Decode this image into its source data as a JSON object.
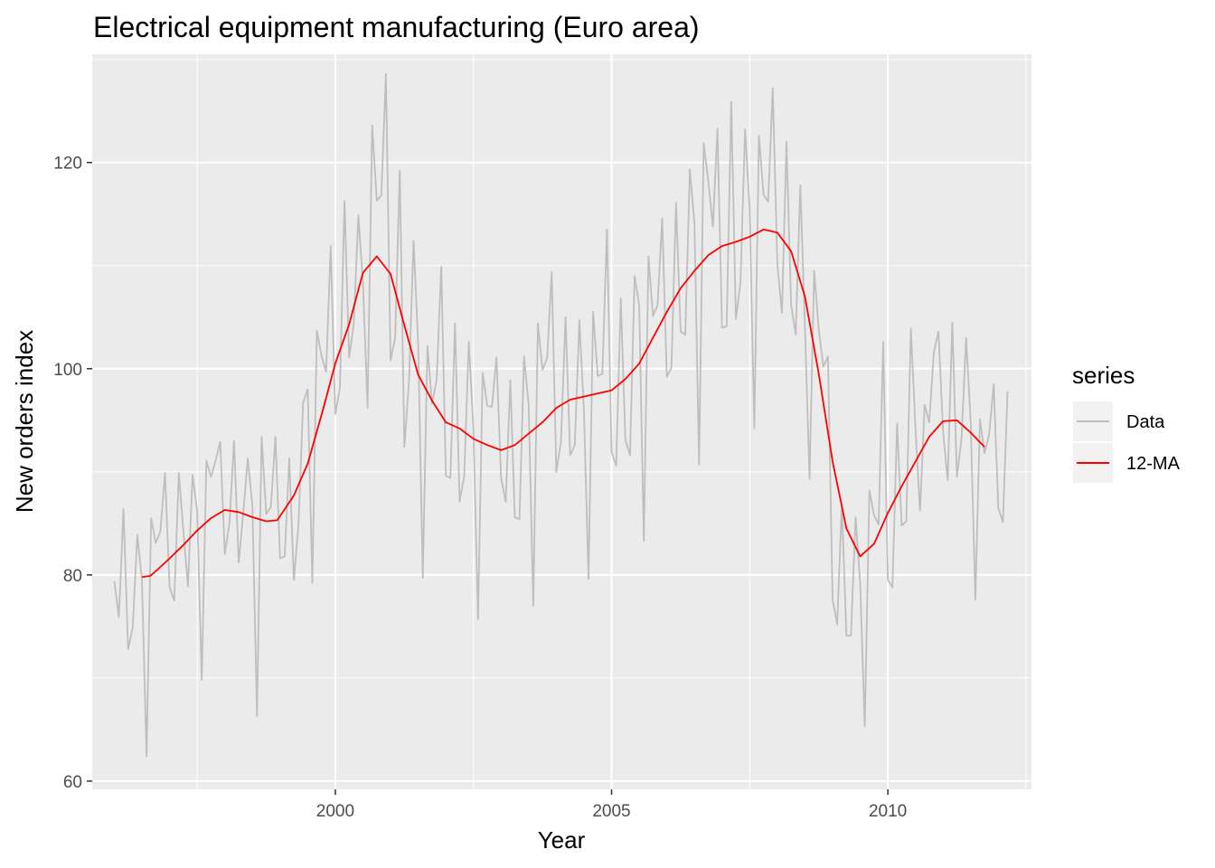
{
  "chart_data": {
    "type": "line",
    "title": "Electrical equipment manufacturing (Euro area)",
    "xlabel": "Year",
    "ylabel": "New orders index",
    "xlim": [
      1995.6,
      2012.6
    ],
    "ylim": [
      59.2,
      130.5
    ],
    "x_ticks": [
      2000,
      2005,
      2010
    ],
    "x_tick_labels": [
      "2000",
      "2005",
      "2010"
    ],
    "y_ticks": [
      60,
      80,
      100,
      120
    ],
    "y_tick_labels": [
      "60",
      "80",
      "100",
      "120"
    ],
    "grid": true,
    "legend": {
      "title": "series",
      "position": "right"
    },
    "series": [
      {
        "name": "Data",
        "color": "#bebebe",
        "x_start": 1996.0,
        "x_step": 0.0833333,
        "values": [
          79.4,
          75.9,
          86.4,
          72.8,
          74.9,
          83.9,
          79.5,
          62.4,
          85.5,
          83.1,
          84.2,
          89.9,
          78.8,
          77.5,
          89.9,
          84.3,
          78.9,
          89.7,
          86.2,
          69.8,
          91.1,
          89.5,
          91.1,
          92.9,
          82.0,
          85.0,
          93.0,
          81.2,
          86.0,
          91.3,
          86.7,
          66.3,
          93.4,
          85.9,
          86.6,
          93.4,
          81.6,
          81.8,
          91.3,
          79.5,
          84.9,
          96.7,
          98.0,
          79.2,
          103.7,
          101.3,
          99.7,
          111.9,
          95.6,
          98.1,
          116.3,
          101.1,
          104.3,
          114.9,
          108.3,
          96.2,
          123.6,
          116.3,
          116.8,
          128.6,
          100.8,
          103.0,
          119.2,
          92.4,
          98.7,
          112.4,
          102.3,
          79.7,
          102.2,
          96.6,
          98.9,
          109.9,
          89.6,
          89.4,
          104.4,
          87.1,
          89.6,
          102.6,
          94.1,
          75.7,
          99.6,
          96.4,
          96.3,
          101.1,
          89.4,
          87.1,
          98.9,
          85.6,
          85.4,
          101.2,
          96.5,
          77.0,
          104.4,
          99.9,
          101.0,
          109.4,
          90.0,
          92.9,
          105.0,
          91.6,
          92.6,
          104.7,
          96.0,
          79.6,
          105.5,
          99.3,
          99.5,
          113.5,
          91.9,
          90.6,
          106.8,
          93.1,
          91.6,
          109.0,
          106.1,
          83.3,
          110.9,
          105.1,
          106.2,
          114.6,
          99.2,
          100.1,
          116.1,
          103.6,
          103.3,
          119.3,
          114.1,
          90.7,
          121.9,
          118.2,
          113.8,
          123.3,
          104.0,
          104.1,
          125.9,
          104.8,
          108.4,
          123.2,
          115.4,
          94.2,
          122.6,
          116.9,
          116.2,
          127.2,
          110.1,
          105.4,
          122.0,
          106.2,
          103.3,
          117.8,
          104.0,
          89.3,
          109.5,
          103.8,
          100.2,
          101.2,
          77.6,
          75.2,
          86.9,
          74.1,
          74.1,
          85.6,
          79.2,
          65.3,
          88.2,
          85.8,
          84.9,
          102.6,
          79.5,
          78.8,
          94.7,
          84.8,
          85.2,
          103.9,
          94.2,
          86.2,
          96.5,
          94.8,
          101.6,
          103.6,
          93.9,
          89.2,
          104.5,
          89.5,
          93.2,
          103.0,
          94.7,
          77.6,
          95.1,
          91.8,
          93.6,
          98.5,
          86.5,
          85.1,
          97.8
        ]
      },
      {
        "name": "12-MA",
        "color": "#ff0000",
        "points": [
          [
            1996.5,
            79.8
          ],
          [
            1996.65,
            79.9
          ],
          [
            1996.8,
            80.6
          ],
          [
            1997.0,
            81.6
          ],
          [
            1997.25,
            82.9
          ],
          [
            1997.5,
            84.3
          ],
          [
            1997.75,
            85.5
          ],
          [
            1998.0,
            86.3
          ],
          [
            1998.25,
            86.1
          ],
          [
            1998.5,
            85.6
          ],
          [
            1998.75,
            85.2
          ],
          [
            1998.95,
            85.3
          ],
          [
            1999.25,
            87.7
          ],
          [
            1999.5,
            90.8
          ],
          [
            1999.75,
            95.5
          ],
          [
            2000.0,
            100.5
          ],
          [
            2000.25,
            104.3
          ],
          [
            2000.5,
            109.3
          ],
          [
            2000.75,
            110.9
          ],
          [
            2001.0,
            109.2
          ],
          [
            2001.25,
            104.2
          ],
          [
            2001.5,
            99.4
          ],
          [
            2001.75,
            96.9
          ],
          [
            2002.0,
            94.8
          ],
          [
            2002.25,
            94.2
          ],
          [
            2002.5,
            93.2
          ],
          [
            2002.75,
            92.6
          ],
          [
            2003.0,
            92.1
          ],
          [
            2003.25,
            92.6
          ],
          [
            2003.5,
            93.7
          ],
          [
            2003.75,
            94.8
          ],
          [
            2004.0,
            96.2
          ],
          [
            2004.25,
            97.0
          ],
          [
            2004.5,
            97.3
          ],
          [
            2004.75,
            97.6
          ],
          [
            2005.0,
            97.9
          ],
          [
            2005.25,
            99.0
          ],
          [
            2005.5,
            100.5
          ],
          [
            2005.75,
            103.0
          ],
          [
            2006.0,
            105.5
          ],
          [
            2006.25,
            107.8
          ],
          [
            2006.5,
            109.5
          ],
          [
            2006.75,
            111.0
          ],
          [
            2007.0,
            111.9
          ],
          [
            2007.25,
            112.3
          ],
          [
            2007.5,
            112.8
          ],
          [
            2007.75,
            113.5
          ],
          [
            2008.0,
            113.2
          ],
          [
            2008.25,
            111.4
          ],
          [
            2008.5,
            107.0
          ],
          [
            2008.75,
            99.5
          ],
          [
            2009.0,
            91.0
          ],
          [
            2009.25,
            84.5
          ],
          [
            2009.5,
            81.8
          ],
          [
            2009.75,
            83.0
          ],
          [
            2010.0,
            86.0
          ],
          [
            2010.25,
            88.6
          ],
          [
            2010.5,
            91.0
          ],
          [
            2010.75,
            93.4
          ],
          [
            2011.0,
            94.9
          ],
          [
            2011.25,
            95.0
          ],
          [
            2011.5,
            93.8
          ],
          [
            2011.75,
            92.4
          ]
        ]
      }
    ]
  }
}
